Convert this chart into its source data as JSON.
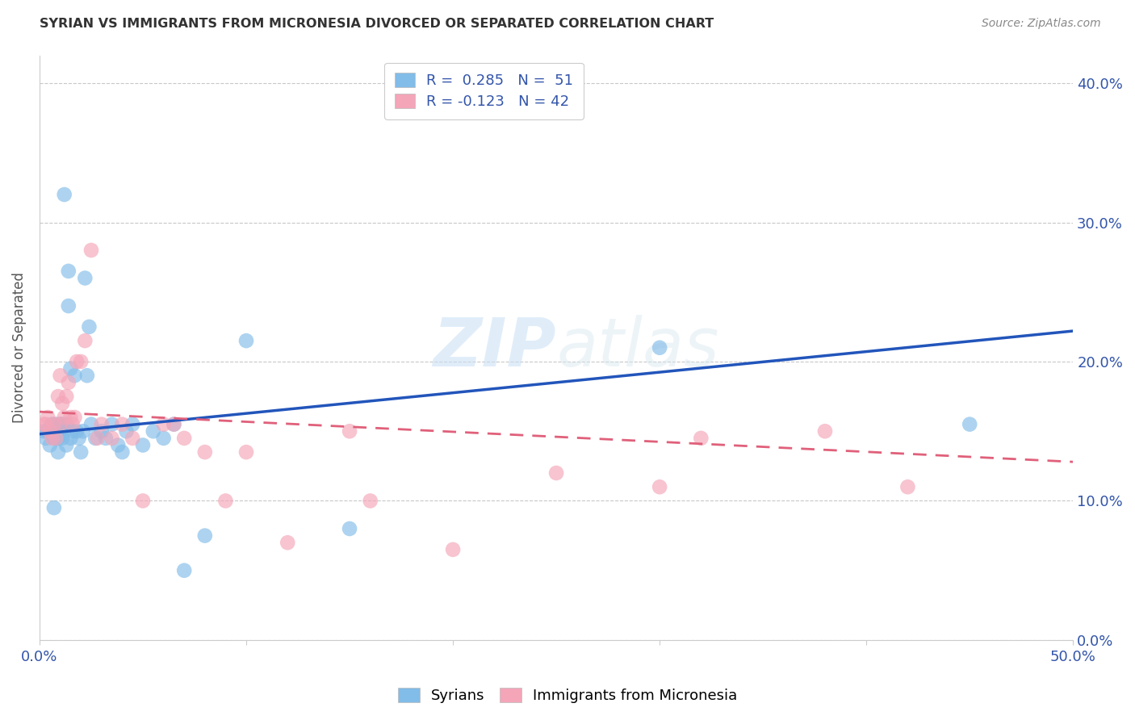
{
  "title": "SYRIAN VS IMMIGRANTS FROM MICRONESIA DIVORCED OR SEPARATED CORRELATION CHART",
  "source": "Source: ZipAtlas.com",
  "ylabel": "Divorced or Separated",
  "xlim": [
    0.0,
    0.5
  ],
  "ylim": [
    0.0,
    0.42
  ],
  "syrians_color": "#82bce8",
  "micronesia_color": "#f4a5b8",
  "trendline_blue": "#2255bb",
  "trendline_pink": "#e0607a",
  "background_color": "#ffffff",
  "grid_color": "#c8c8c8",
  "legend_label1": "R =  0.285   N =  51",
  "legend_label2": "R = -0.123   N = 42",
  "syrians_x": [
    0.002,
    0.003,
    0.004,
    0.005,
    0.006,
    0.007,
    0.007,
    0.008,
    0.008,
    0.009,
    0.009,
    0.01,
    0.01,
    0.011,
    0.011,
    0.012,
    0.012,
    0.013,
    0.013,
    0.014,
    0.014,
    0.015,
    0.015,
    0.016,
    0.017,
    0.018,
    0.019,
    0.02,
    0.021,
    0.022,
    0.023,
    0.024,
    0.025,
    0.027,
    0.03,
    0.032,
    0.035,
    0.038,
    0.04,
    0.042,
    0.045,
    0.05,
    0.055,
    0.06,
    0.065,
    0.07,
    0.08,
    0.1,
    0.15,
    0.3,
    0.45
  ],
  "syrians_y": [
    0.15,
    0.145,
    0.15,
    0.14,
    0.155,
    0.145,
    0.095,
    0.145,
    0.155,
    0.145,
    0.135,
    0.15,
    0.155,
    0.155,
    0.145,
    0.32,
    0.15,
    0.14,
    0.155,
    0.24,
    0.265,
    0.145,
    0.195,
    0.15,
    0.19,
    0.15,
    0.145,
    0.135,
    0.15,
    0.26,
    0.19,
    0.225,
    0.155,
    0.145,
    0.15,
    0.145,
    0.155,
    0.14,
    0.135,
    0.15,
    0.155,
    0.14,
    0.15,
    0.145,
    0.155,
    0.05,
    0.075,
    0.215,
    0.08,
    0.21,
    0.155
  ],
  "micronesia_x": [
    0.002,
    0.003,
    0.004,
    0.005,
    0.006,
    0.007,
    0.008,
    0.009,
    0.01,
    0.01,
    0.011,
    0.012,
    0.013,
    0.014,
    0.015,
    0.016,
    0.017,
    0.018,
    0.02,
    0.022,
    0.025,
    0.028,
    0.03,
    0.035,
    0.04,
    0.045,
    0.05,
    0.06,
    0.065,
    0.07,
    0.08,
    0.09,
    0.1,
    0.12,
    0.15,
    0.16,
    0.2,
    0.25,
    0.3,
    0.32,
    0.38,
    0.42
  ],
  "micronesia_y": [
    0.155,
    0.155,
    0.16,
    0.15,
    0.145,
    0.155,
    0.145,
    0.175,
    0.19,
    0.155,
    0.17,
    0.16,
    0.175,
    0.185,
    0.16,
    0.155,
    0.16,
    0.2,
    0.2,
    0.215,
    0.28,
    0.145,
    0.155,
    0.145,
    0.155,
    0.145,
    0.1,
    0.155,
    0.155,
    0.145,
    0.135,
    0.1,
    0.135,
    0.07,
    0.15,
    0.1,
    0.065,
    0.12,
    0.11,
    0.145,
    0.15,
    0.11
  ],
  "blue_trend_start_y": 0.148,
  "blue_trend_end_y": 0.222,
  "pink_trend_start_y": 0.164,
  "pink_trend_end_y": 0.128
}
